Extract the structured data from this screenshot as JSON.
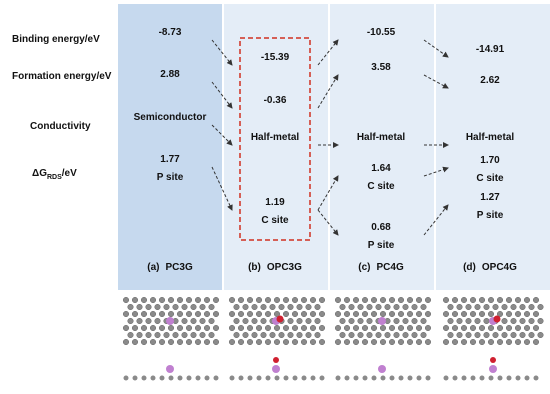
{
  "row_labels": {
    "binding": "Binding energy/eV",
    "formation": "Formation energy/eV",
    "conductivity": "Conductivity",
    "dg": {
      "main": "ΔG",
      "sub": "RDS",
      "unit": "/eV"
    }
  },
  "columns": [
    {
      "label": "(a)",
      "name": "PC3G",
      "binding": "-8.73",
      "formation": "2.88",
      "conductivity": "Semiconductor",
      "dg": [
        {
          "value": "1.77",
          "site": "P site"
        }
      ]
    },
    {
      "label": "(b)",
      "name": "OPC3G",
      "binding": "-15.39",
      "formation": "-0.36",
      "conductivity": "Half-metal",
      "dg": [
        {
          "value": "1.19",
          "site": "C site"
        }
      ]
    },
    {
      "label": "(c)",
      "name": "PC4G",
      "binding": "-10.55",
      "formation": "3.58",
      "conductivity": "Half-metal",
      "dg": [
        {
          "value": "1.64",
          "site": "C site"
        },
        {
          "value": "0.68",
          "site": "P site"
        }
      ]
    },
    {
      "label": "(d)",
      "name": "OPC4G",
      "binding": "-14.91",
      "formation": "2.62",
      "conductivity": "Half-metal",
      "dg": [
        {
          "value": "1.70",
          "site": "C site"
        },
        {
          "value": "1.27",
          "site": "P site"
        }
      ]
    }
  ]
}
